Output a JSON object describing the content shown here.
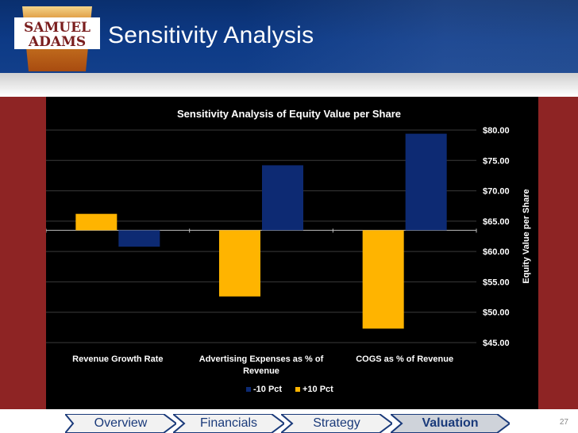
{
  "slide": {
    "title": "Sensitivity Analysis",
    "page_number": "27"
  },
  "logo": {
    "line1": "SAMUEL",
    "line2": "ADAMS"
  },
  "nav": {
    "tabs": [
      {
        "label": "Overview",
        "active": false
      },
      {
        "label": "Financials",
        "active": false
      },
      {
        "label": "Strategy",
        "active": false
      },
      {
        "label": "Valuation",
        "active": true
      }
    ]
  },
  "colors": {
    "series1": "#0d2a73",
    "series2": "#ffb400",
    "background": "#000000",
    "sidebar": "#8e2424"
  },
  "chart_data": {
    "type": "bar",
    "title": "Sensitivity Analysis of Equity Value per Share",
    "ylabel": "Equity Value per Share",
    "xlabel": "",
    "baseline": 63.5,
    "ylim": [
      45,
      80
    ],
    "yticks": [
      "$80.00",
      "$75.00",
      "$70.00",
      "$65.00",
      "$60.00",
      "$55.00",
      "$50.00",
      "$45.00"
    ],
    "ytick_values": [
      80,
      75,
      70,
      65,
      60,
      55,
      50,
      45
    ],
    "categories": [
      [
        "Revenue Growth Rate"
      ],
      [
        "Advertising Expenses as % of",
        "Revenue"
      ],
      [
        "COGS as % of Revenue"
      ]
    ],
    "series": [
      {
        "name": "-10 Pct",
        "color": "#0d2a73",
        "values": [
          60.8,
          74.2,
          79.4
        ]
      },
      {
        "name": "+10 Pct",
        "color": "#ffb400",
        "values": [
          66.2,
          52.6,
          47.3
        ]
      }
    ],
    "legend_position": "bottom"
  }
}
